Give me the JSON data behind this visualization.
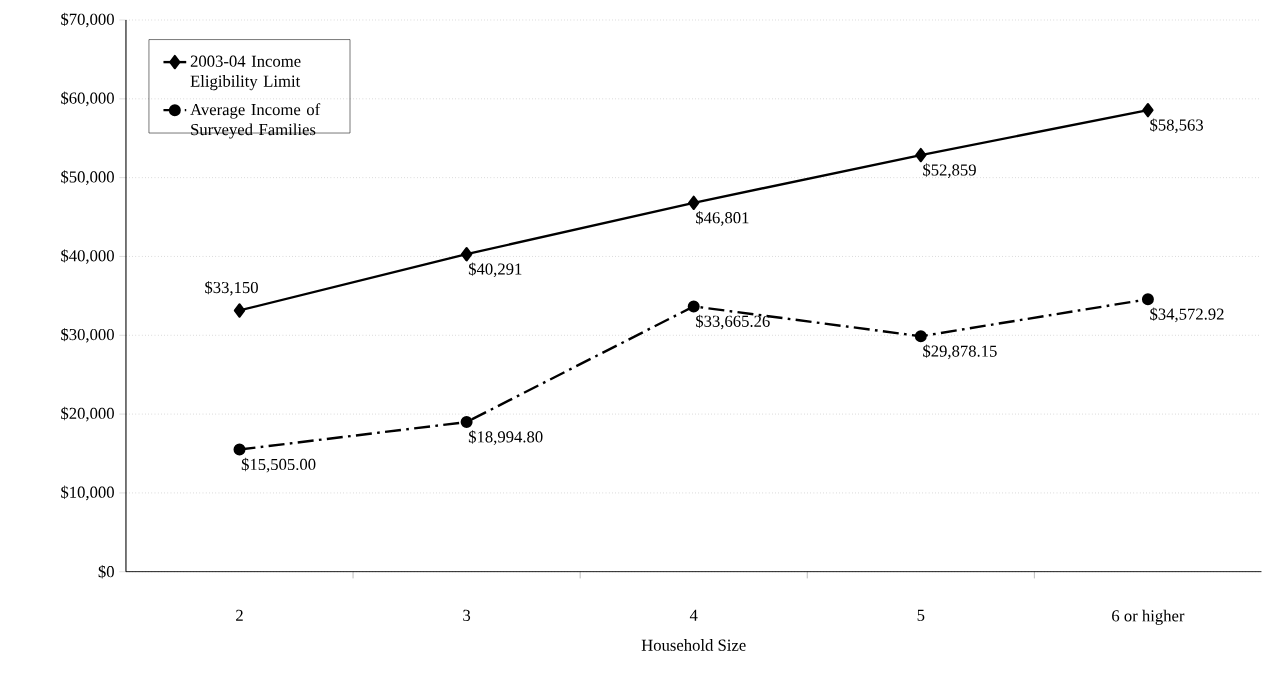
{
  "chart_data": {
    "type": "line",
    "xlabel": "Household Size",
    "categories": [
      "2",
      "3",
      "4",
      "5",
      "6 or higher"
    ],
    "series": [
      {
        "name": "2003-04 Income Eligibility Limit",
        "color": "#000000",
        "marker": "diamond",
        "line_style": "solid",
        "values": [
          33150,
          40291,
          46801,
          52859,
          58563
        ],
        "value_labels": [
          "$33,150",
          "$40,291",
          "$46,801",
          "$52,859",
          "$58,563"
        ]
      },
      {
        "name": "Average Income of Surveyed Families",
        "color": "#000000",
        "marker": "circle",
        "line_style": "dashed",
        "values": [
          15505.0,
          18994.8,
          33665.26,
          29878.15,
          34572.92
        ],
        "value_labels": [
          "$15,505.00",
          "$18,994.80",
          "$33,665.26",
          "$29,878.15",
          "$34,572.92"
        ]
      }
    ],
    "ylim": [
      0,
      70000
    ],
    "yticks": [
      {
        "value": 0,
        "label": "$0"
      },
      {
        "value": 10000,
        "label": "$10,000"
      },
      {
        "value": 20000,
        "label": "$20,000"
      },
      {
        "value": 30000,
        "label": "$30,000"
      },
      {
        "value": 40000,
        "label": "$40,000"
      },
      {
        "value": 50000,
        "label": "$50,000"
      },
      {
        "value": 60000,
        "label": "$60,000"
      },
      {
        "value": 70000,
        "label": "$70,000"
      }
    ],
    "grid": "y",
    "legend": "top left"
  }
}
